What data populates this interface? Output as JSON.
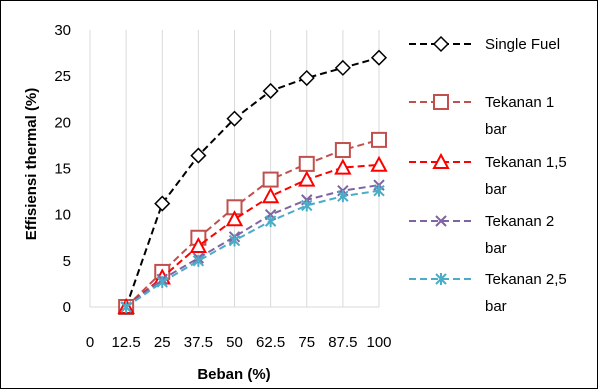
{
  "chart_data": {
    "type": "line",
    "xlabel": "Beban (%)",
    "ylabel": "Effisiensi thermal (%)",
    "x_tick_labels": [
      "0",
      "12.5",
      "25",
      "37.5",
      "50",
      "62.5",
      "75",
      "87.5",
      "100"
    ],
    "x": [
      12.5,
      25,
      37.5,
      50,
      62.5,
      75,
      87.5,
      100
    ],
    "xlim": [
      0,
      100
    ],
    "ylim": [
      0,
      30
    ],
    "y_ticks": [
      0,
      5,
      10,
      15,
      20,
      25,
      30
    ],
    "grid": "vertical",
    "legend_position": "right",
    "series": [
      {
        "name": "Single Fuel",
        "color": "#000000",
        "marker": "diamond",
        "values": [
          0,
          11.2,
          16.4,
          20.4,
          23.4,
          24.8,
          25.9,
          27.0
        ]
      },
      {
        "name": "Tekanan 1 bar",
        "color": "#C0504D",
        "marker": "square",
        "values": [
          0,
          3.8,
          7.5,
          10.8,
          13.8,
          15.5,
          17.0,
          18.1
        ]
      },
      {
        "name": "Tekanan 1,5 bar",
        "color": "#FF0000",
        "marker": "triangle",
        "values": [
          0,
          3.2,
          6.6,
          9.5,
          12.0,
          13.8,
          15.1,
          15.4
        ]
      },
      {
        "name": "Tekanan 2 bar",
        "color": "#8064A2",
        "marker": "x",
        "values": [
          0,
          3.0,
          5.3,
          7.6,
          10.0,
          11.6,
          12.6,
          13.2
        ]
      },
      {
        "name": "Tekanan 2,5 bar",
        "color": "#4BACC6",
        "marker": "star",
        "values": [
          0,
          2.7,
          5.0,
          7.2,
          9.3,
          11.0,
          12.0,
          12.6
        ]
      }
    ],
    "legend": [
      {
        "lines": [
          "Single Fuel"
        ]
      },
      {
        "lines": [
          "Tekanan 1",
          "bar"
        ]
      },
      {
        "lines": [
          "Tekanan 1,5",
          "bar"
        ]
      },
      {
        "lines": [
          "Tekanan 2",
          "bar"
        ]
      },
      {
        "lines": [
          "Tekanan 2,5",
          "bar"
        ]
      }
    ]
  }
}
